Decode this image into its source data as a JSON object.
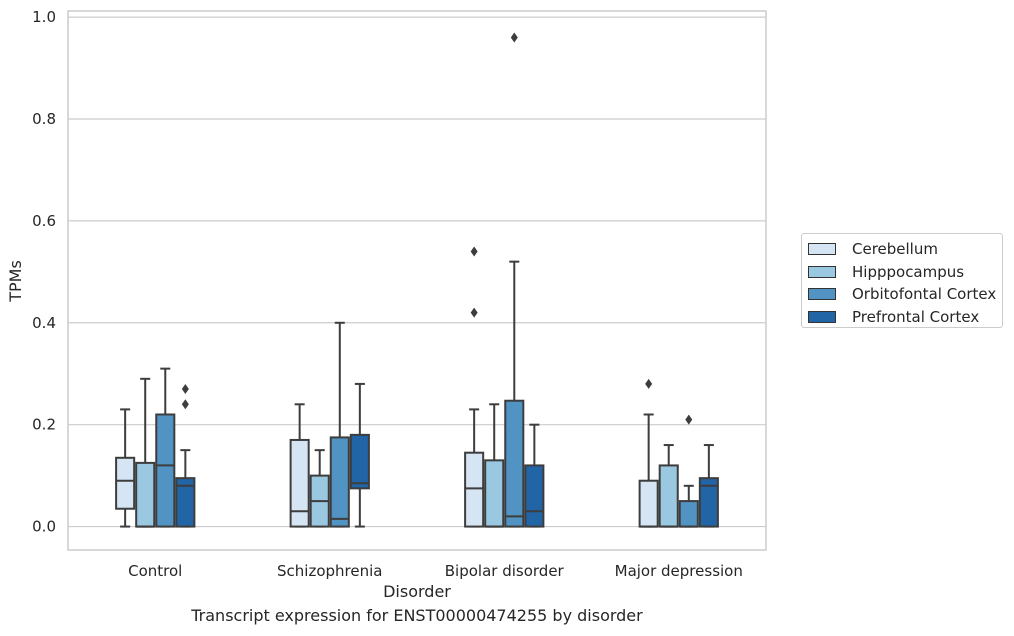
{
  "chart_data": {
    "type": "box",
    "xlabel": "Disorder",
    "ylabel": "TPMs",
    "ylim": [
      -0.046,
      1.012
    ],
    "yticks": [
      0.0,
      0.2,
      0.4,
      0.6,
      0.8,
      1.0
    ],
    "ytick_labels": [
      "0.0",
      "0.2",
      "0.4",
      "0.6",
      "0.8",
      "1.0"
    ],
    "grid": "horizontal",
    "legend_position": "right",
    "categories": [
      "Control",
      "Schizophrenia",
      "Bipolar disorder",
      "Major depression"
    ],
    "series": [
      {
        "name": "Cerebellum",
        "color": "#d6e5f4",
        "boxes": [
          {
            "q1": 0.035,
            "median": 0.09,
            "q3": 0.135,
            "whislo": 0.0,
            "whishi": 0.23,
            "fliers": []
          },
          {
            "q1": 0.0,
            "median": 0.03,
            "q3": 0.17,
            "whislo": 0.0,
            "whishi": 0.24,
            "fliers": []
          },
          {
            "q1": 0.0,
            "median": 0.075,
            "q3": 0.145,
            "whislo": 0.0,
            "whishi": 0.23,
            "fliers": [
              0.42,
              0.54
            ]
          },
          {
            "q1": 0.0,
            "median": 0.0,
            "q3": 0.09,
            "whislo": 0.0,
            "whishi": 0.22,
            "fliers": [
              0.28
            ]
          }
        ]
      },
      {
        "name": "Hipppocampus",
        "color": "#9ac8e0",
        "boxes": [
          {
            "q1": 0.0,
            "median": 0.0,
            "q3": 0.125,
            "whislo": 0.0,
            "whishi": 0.29,
            "fliers": []
          },
          {
            "q1": 0.0,
            "median": 0.05,
            "q3": 0.1,
            "whislo": 0.0,
            "whishi": 0.15,
            "fliers": []
          },
          {
            "q1": 0.0,
            "median": 0.0,
            "q3": 0.13,
            "whislo": 0.0,
            "whishi": 0.24,
            "fliers": []
          },
          {
            "q1": 0.0,
            "median": 0.0,
            "q3": 0.12,
            "whislo": 0.0,
            "whishi": 0.16,
            "fliers": []
          }
        ]
      },
      {
        "name": "Orbitofontal Cortex",
        "color": "#5193c3",
        "boxes": [
          {
            "q1": 0.0,
            "median": 0.12,
            "q3": 0.22,
            "whislo": 0.0,
            "whishi": 0.31,
            "fliers": []
          },
          {
            "q1": 0.0,
            "median": 0.015,
            "q3": 0.175,
            "whislo": 0.0,
            "whishi": 0.4,
            "fliers": []
          },
          {
            "q1": 0.0,
            "median": 0.02,
            "q3": 0.247,
            "whislo": 0.0,
            "whishi": 0.52,
            "fliers": [
              0.96
            ]
          },
          {
            "q1": 0.0,
            "median": 0.0,
            "q3": 0.05,
            "whislo": 0.0,
            "whishi": 0.08,
            "fliers": [
              0.21
            ]
          }
        ]
      },
      {
        "name": "Prefrontal Cortex",
        "color": "#2265a6",
        "boxes": [
          {
            "q1": 0.0,
            "median": 0.08,
            "q3": 0.095,
            "whislo": 0.0,
            "whishi": 0.15,
            "fliers": [
              0.24,
              0.27
            ]
          },
          {
            "q1": 0.075,
            "median": 0.085,
            "q3": 0.18,
            "whislo": 0.0,
            "whishi": 0.28,
            "fliers": []
          },
          {
            "q1": 0.0,
            "median": 0.03,
            "q3": 0.12,
            "whislo": 0.0,
            "whishi": 0.2,
            "fliers": []
          },
          {
            "q1": 0.0,
            "median": 0.08,
            "q3": 0.095,
            "whislo": 0.0,
            "whishi": 0.16,
            "fliers": []
          }
        ]
      }
    ]
  },
  "caption": "Transcript expression for ENST00000474255 by disorder"
}
